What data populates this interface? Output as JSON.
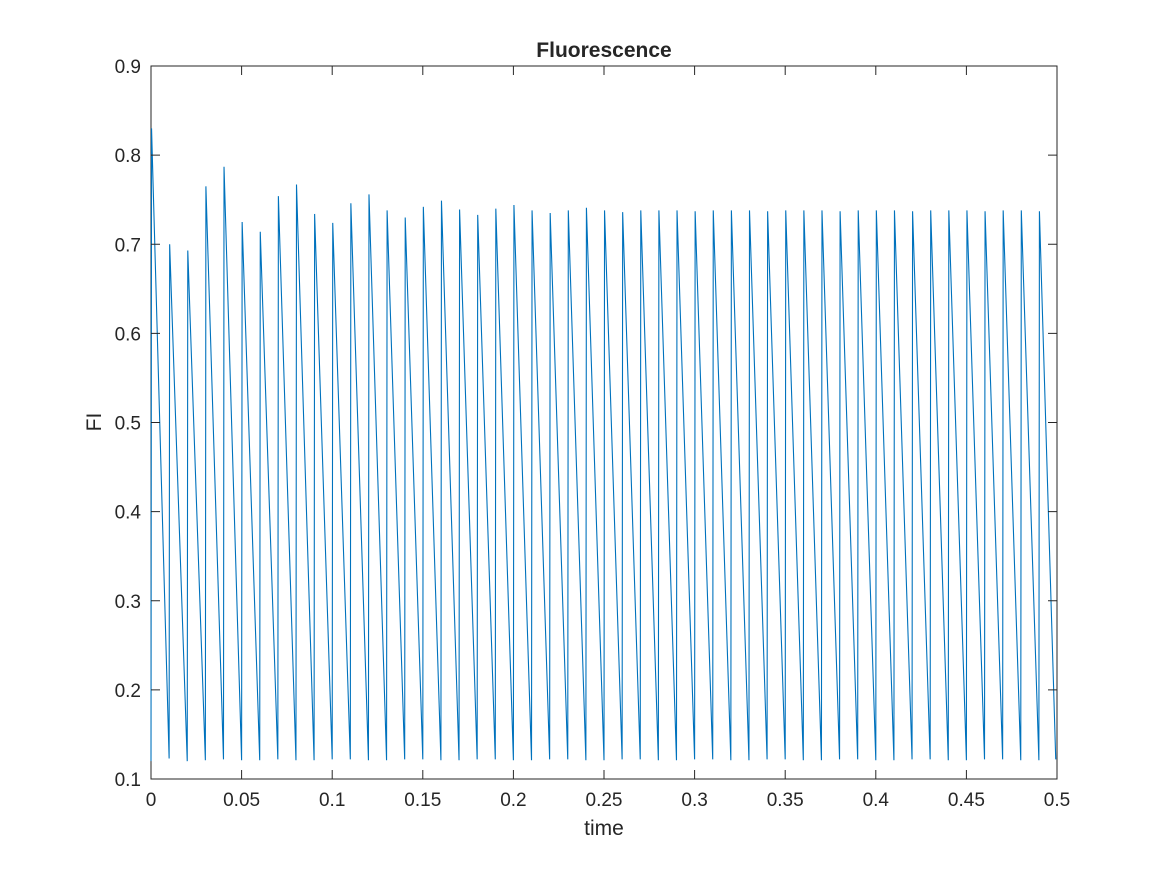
{
  "chart_data": {
    "type": "line",
    "title": "Fluorescence",
    "xlabel": "time",
    "ylabel": "FI",
    "xlim": [
      0,
      0.5
    ],
    "ylim": [
      0.1,
      0.9
    ],
    "xticks": [
      0,
      0.05,
      0.1,
      0.15,
      0.2,
      0.25,
      0.3,
      0.35,
      0.4,
      0.45,
      0.5
    ],
    "xtick_labels": [
      "0",
      "0.05",
      "0.1",
      "0.15",
      "0.2",
      "0.25",
      "0.3",
      "0.35",
      "0.4",
      "0.45",
      "0.5"
    ],
    "yticks": [
      0.1,
      0.2,
      0.3,
      0.4,
      0.5,
      0.6,
      0.7,
      0.8,
      0.9
    ],
    "ytick_labels": [
      "0.1",
      "0.2",
      "0.3",
      "0.4",
      "0.5",
      "0.6",
      "0.7",
      "0.8",
      "0.9"
    ],
    "grid": false,
    "series": [
      {
        "name": "FI",
        "color": "#0072bd",
        "period": 0.01,
        "start_value": 0.12,
        "peaks": [
          0.83,
          0.7,
          0.693,
          0.765,
          0.787,
          0.725,
          0.714,
          0.754,
          0.767,
          0.734,
          0.724,
          0.746,
          0.756,
          0.738,
          0.73,
          0.742,
          0.749,
          0.739,
          0.733,
          0.74,
          0.744,
          0.738,
          0.735,
          0.738,
          0.741,
          0.738,
          0.736,
          0.738,
          0.738,
          0.738,
          0.737,
          0.738,
          0.738,
          0.738,
          0.737,
          0.738,
          0.738,
          0.738,
          0.737,
          0.738,
          0.738,
          0.738,
          0.737,
          0.738,
          0.738,
          0.738,
          0.737,
          0.738,
          0.738,
          0.737
        ],
        "troughs": [
          0.123,
          0.12,
          0.121,
          0.122,
          0.121,
          0.121,
          0.122,
          0.121,
          0.121,
          0.122,
          0.122,
          0.121,
          0.121,
          0.122,
          0.122,
          0.121,
          0.121,
          0.122,
          0.122,
          0.121,
          0.121,
          0.122,
          0.122,
          0.121,
          0.121,
          0.122,
          0.122,
          0.121,
          0.121,
          0.122,
          0.122,
          0.121,
          0.121,
          0.122,
          0.122,
          0.121,
          0.121,
          0.122,
          0.122,
          0.121,
          0.121,
          0.122,
          0.122,
          0.121,
          0.121,
          0.122,
          0.122,
          0.121,
          0.121,
          0.122
        ]
      }
    ]
  }
}
